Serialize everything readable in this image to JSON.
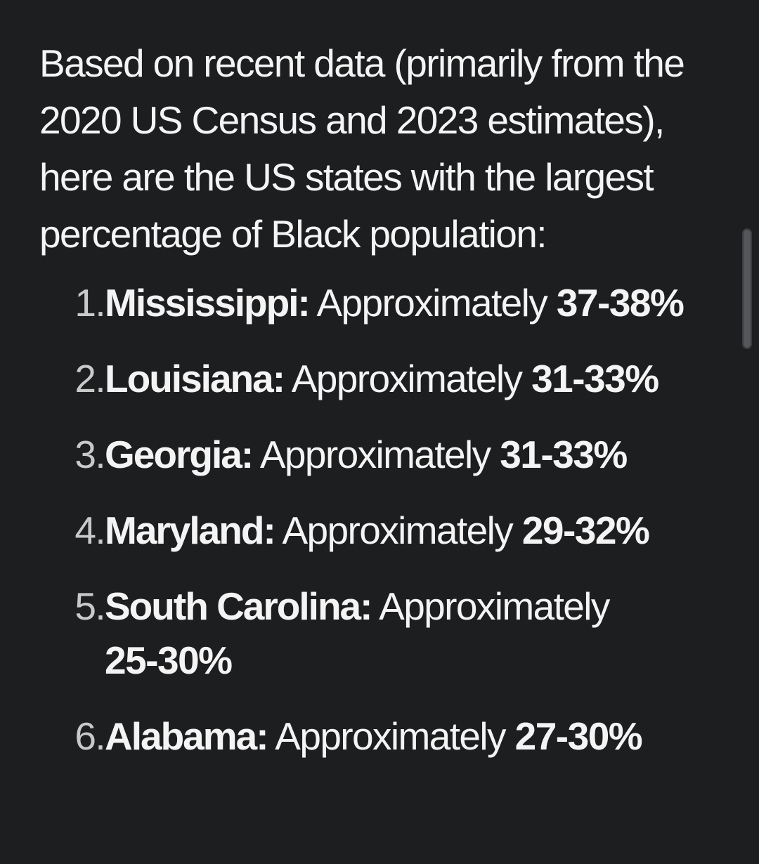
{
  "message": {
    "intro": "Based on recent data (primarily from the 2020 US Census and 2023 estimates), here are the US states with the largest percentage of Black population:",
    "items": [
      {
        "number": "1.",
        "state": "Mississippi:",
        "phrase": "Approximately",
        "range": "37-38%"
      },
      {
        "number": "2.",
        "state": "Louisiana:",
        "phrase": "Approximately",
        "range": "31-33%"
      },
      {
        "number": "3.",
        "state": "Georgia:",
        "phrase": "Approximately",
        "range": "31-33%"
      },
      {
        "number": "4.",
        "state": "Maryland:",
        "phrase": "Approximately",
        "range": "29-32%"
      },
      {
        "number": "5.",
        "state": "South Carolina:",
        "phrase": "Approximately",
        "range": "25-30%"
      },
      {
        "number": "6.",
        "state": "Alabama:",
        "phrase": "Approximately",
        "range": "27-30%"
      }
    ]
  },
  "colors": {
    "background": "#1d1e20",
    "text": "#f4f4f4",
    "list_number": "#c9c9c9",
    "scrollbar": "#555659"
  }
}
